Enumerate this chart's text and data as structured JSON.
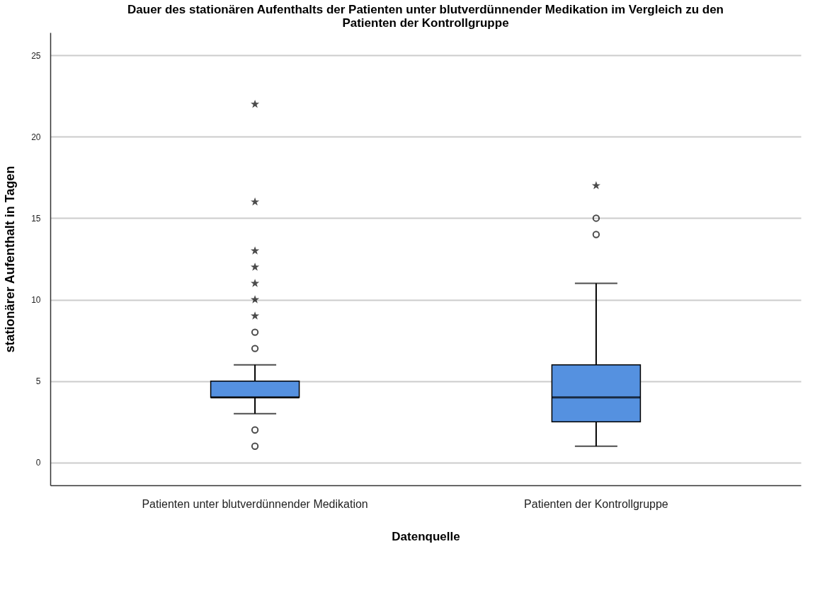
{
  "chart_data": {
    "type": "box",
    "title": "Dauer des stationären Aufenthalts der Patienten unter blutverdünnender Medikation im Vergleich zu den Patienten der Kontrollgruppe",
    "xlabel": "Datenquelle",
    "ylabel": "stationärer Aufenthalt in Tagen",
    "categories": [
      "Patienten unter blutverdünnender Medikation",
      "Patienten der Kontrollgruppe"
    ],
    "color": "#5591e0",
    "boxes": [
      {
        "low": 3,
        "q1": 4,
        "median": 4,
        "q3": 5,
        "high": 6,
        "outliers": [
          1,
          2,
          7,
          8,
          9,
          10,
          11,
          12,
          13,
          16,
          22
        ]
      },
      {
        "low": 1,
        "q1": 2.5,
        "median": 4,
        "q3": 6,
        "high": 11,
        "outliers": [
          14,
          15,
          17
        ]
      }
    ],
    "ylim": [
      -1.4,
      26.4
    ],
    "yticks": [
      0,
      5,
      10,
      15,
      20,
      25
    ],
    "grid": "y"
  }
}
